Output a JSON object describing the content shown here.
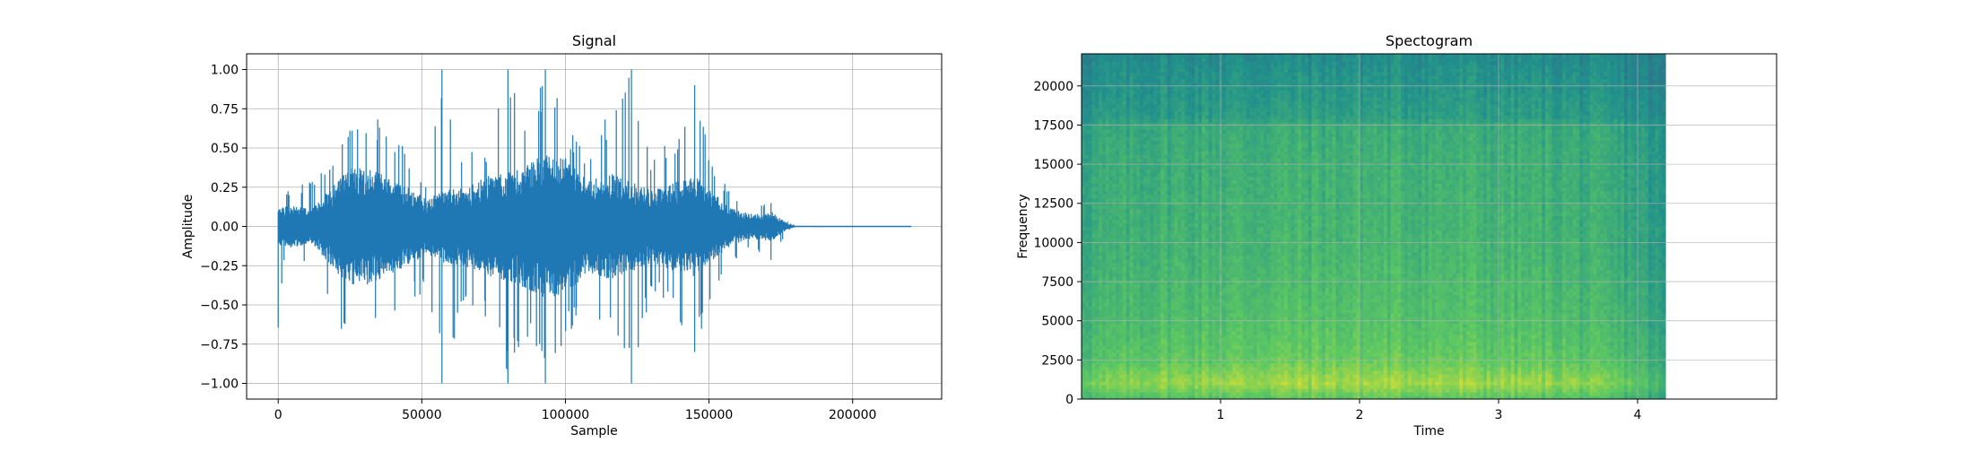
{
  "figure": {
    "background": "#ffffff"
  },
  "chart_data": [
    {
      "type": "line",
      "title": "Signal",
      "xlabel": "Sample",
      "ylabel": "Amplitude",
      "xlim": [
        -11000,
        231000
      ],
      "ylim": [
        -1.1,
        1.1
      ],
      "grid": true,
      "x_ticks": [
        0,
        50000,
        100000,
        150000,
        200000
      ],
      "x_tick_labels": [
        "0",
        "50000",
        "100000",
        "150000",
        "200000"
      ],
      "y_ticks": [
        1.0,
        0.75,
        0.5,
        0.25,
        0.0,
        -0.25,
        -0.5,
        -0.75,
        -1.0
      ],
      "y_tick_labels": [
        "1.00",
        "0.75",
        "0.50",
        "0.25",
        "0.00",
        "−0.25",
        "−0.50",
        "−0.75",
        "−1.00"
      ],
      "line_color": "#1f77b4",
      "n_samples": 220500,
      "envelope": [
        {
          "x": 0,
          "peak_pos": 0.73,
          "peak_neg": -0.7,
          "body": 0.1
        },
        {
          "x": 2000,
          "peak_pos": 0.25,
          "peak_neg": -0.25,
          "body": 0.12
        },
        {
          "x": 12000,
          "peak_pos": 0.3,
          "peak_neg": -0.25,
          "body": 0.1
        },
        {
          "x": 20000,
          "peak_pos": 0.45,
          "peak_neg": -0.65,
          "body": 0.25
        },
        {
          "x": 27000,
          "peak_pos": 0.7,
          "peak_neg": -0.72,
          "body": 0.35
        },
        {
          "x": 35000,
          "peak_pos": 0.7,
          "peak_neg": -0.6,
          "body": 0.3
        },
        {
          "x": 45000,
          "peak_pos": 0.48,
          "peak_neg": -0.5,
          "body": 0.22
        },
        {
          "x": 52000,
          "peak_pos": 0.3,
          "peak_neg": -0.4,
          "body": 0.15
        },
        {
          "x": 57000,
          "peak_pos": 1.0,
          "peak_neg": -1.0,
          "body": 0.2
        },
        {
          "x": 65000,
          "peak_pos": 0.45,
          "peak_neg": -0.5,
          "body": 0.22
        },
        {
          "x": 73000,
          "peak_pos": 0.55,
          "peak_neg": -0.6,
          "body": 0.28
        },
        {
          "x": 80000,
          "peak_pos": 1.0,
          "peak_neg": -1.0,
          "body": 0.3
        },
        {
          "x": 87000,
          "peak_pos": 0.6,
          "peak_neg": -0.75,
          "body": 0.35
        },
        {
          "x": 93000,
          "peak_pos": 1.0,
          "peak_neg": -1.0,
          "body": 0.4
        },
        {
          "x": 100000,
          "peak_pos": 0.7,
          "peak_neg": -0.72,
          "body": 0.38
        },
        {
          "x": 108000,
          "peak_pos": 0.5,
          "peak_neg": -0.55,
          "body": 0.25
        },
        {
          "x": 115000,
          "peak_pos": 0.75,
          "peak_neg": -0.7,
          "body": 0.3
        },
        {
          "x": 123000,
          "peak_pos": 1.0,
          "peak_neg": -1.0,
          "body": 0.25
        },
        {
          "x": 130000,
          "peak_pos": 0.45,
          "peak_neg": -0.4,
          "body": 0.2
        },
        {
          "x": 138000,
          "peak_pos": 0.6,
          "peak_neg": -0.55,
          "body": 0.25
        },
        {
          "x": 145000,
          "peak_pos": 0.9,
          "peak_neg": -0.8,
          "body": 0.28
        },
        {
          "x": 152000,
          "peak_pos": 0.4,
          "peak_neg": -0.45,
          "body": 0.18
        },
        {
          "x": 158000,
          "peak_pos": 0.2,
          "peak_neg": -0.22,
          "body": 0.1
        },
        {
          "x": 165000,
          "peak_pos": 0.12,
          "peak_neg": -0.15,
          "body": 0.07
        },
        {
          "x": 172000,
          "peak_pos": 0.18,
          "peak_neg": -0.22,
          "body": 0.08
        },
        {
          "x": 177000,
          "peak_pos": 0.04,
          "peak_neg": -0.04,
          "body": 0.02
        },
        {
          "x": 180000,
          "peak_pos": 0.005,
          "peak_neg": -0.005,
          "body": 0.003
        },
        {
          "x": 220500,
          "peak_pos": 0.0,
          "peak_neg": 0.0,
          "body": 0.0
        }
      ]
    },
    {
      "type": "heatmap",
      "title": "Spectogram",
      "xlabel": "Time",
      "ylabel": "Frequency",
      "xlim": [
        0,
        5.0
      ],
      "ylim": [
        0,
        22050
      ],
      "data_x_end": 4.2,
      "grid": true,
      "x_ticks": [
        1,
        2,
        3,
        4
      ],
      "x_tick_labels": [
        "1",
        "2",
        "3",
        "4"
      ],
      "y_ticks": [
        0,
        2500,
        5000,
        7500,
        10000,
        12500,
        15000,
        17500,
        20000
      ],
      "y_tick_labels": [
        "0",
        "2500",
        "5000",
        "7500",
        "10000",
        "12500",
        "15000",
        "17500",
        "20000"
      ],
      "colormap": "viridis",
      "colormap_stops": [
        "#440154",
        "#3b528b",
        "#21918c",
        "#5ec962",
        "#fde725"
      ],
      "intensity_profile": {
        "by_frequency": [
          {
            "f": 0,
            "level": 0.72
          },
          {
            "f": 1000,
            "level": 0.95
          },
          {
            "f": 2500,
            "level": 0.78
          },
          {
            "f": 5000,
            "level": 0.7
          },
          {
            "f": 10000,
            "level": 0.62
          },
          {
            "f": 15000,
            "level": 0.58
          },
          {
            "f": 17500,
            "level": 0.55
          },
          {
            "f": 18000,
            "level": 0.45
          },
          {
            "f": 20000,
            "level": 0.4
          },
          {
            "f": 22050,
            "level": 0.33
          }
        ],
        "by_time": [
          {
            "t": 0.0,
            "level": 0.85
          },
          {
            "t": 0.5,
            "level": 0.95
          },
          {
            "t": 1.5,
            "level": 1.0
          },
          {
            "t": 2.5,
            "level": 1.0
          },
          {
            "t": 3.5,
            "level": 0.95
          },
          {
            "t": 4.0,
            "level": 0.8
          },
          {
            "t": 4.2,
            "level": 0.6
          }
        ]
      }
    }
  ]
}
